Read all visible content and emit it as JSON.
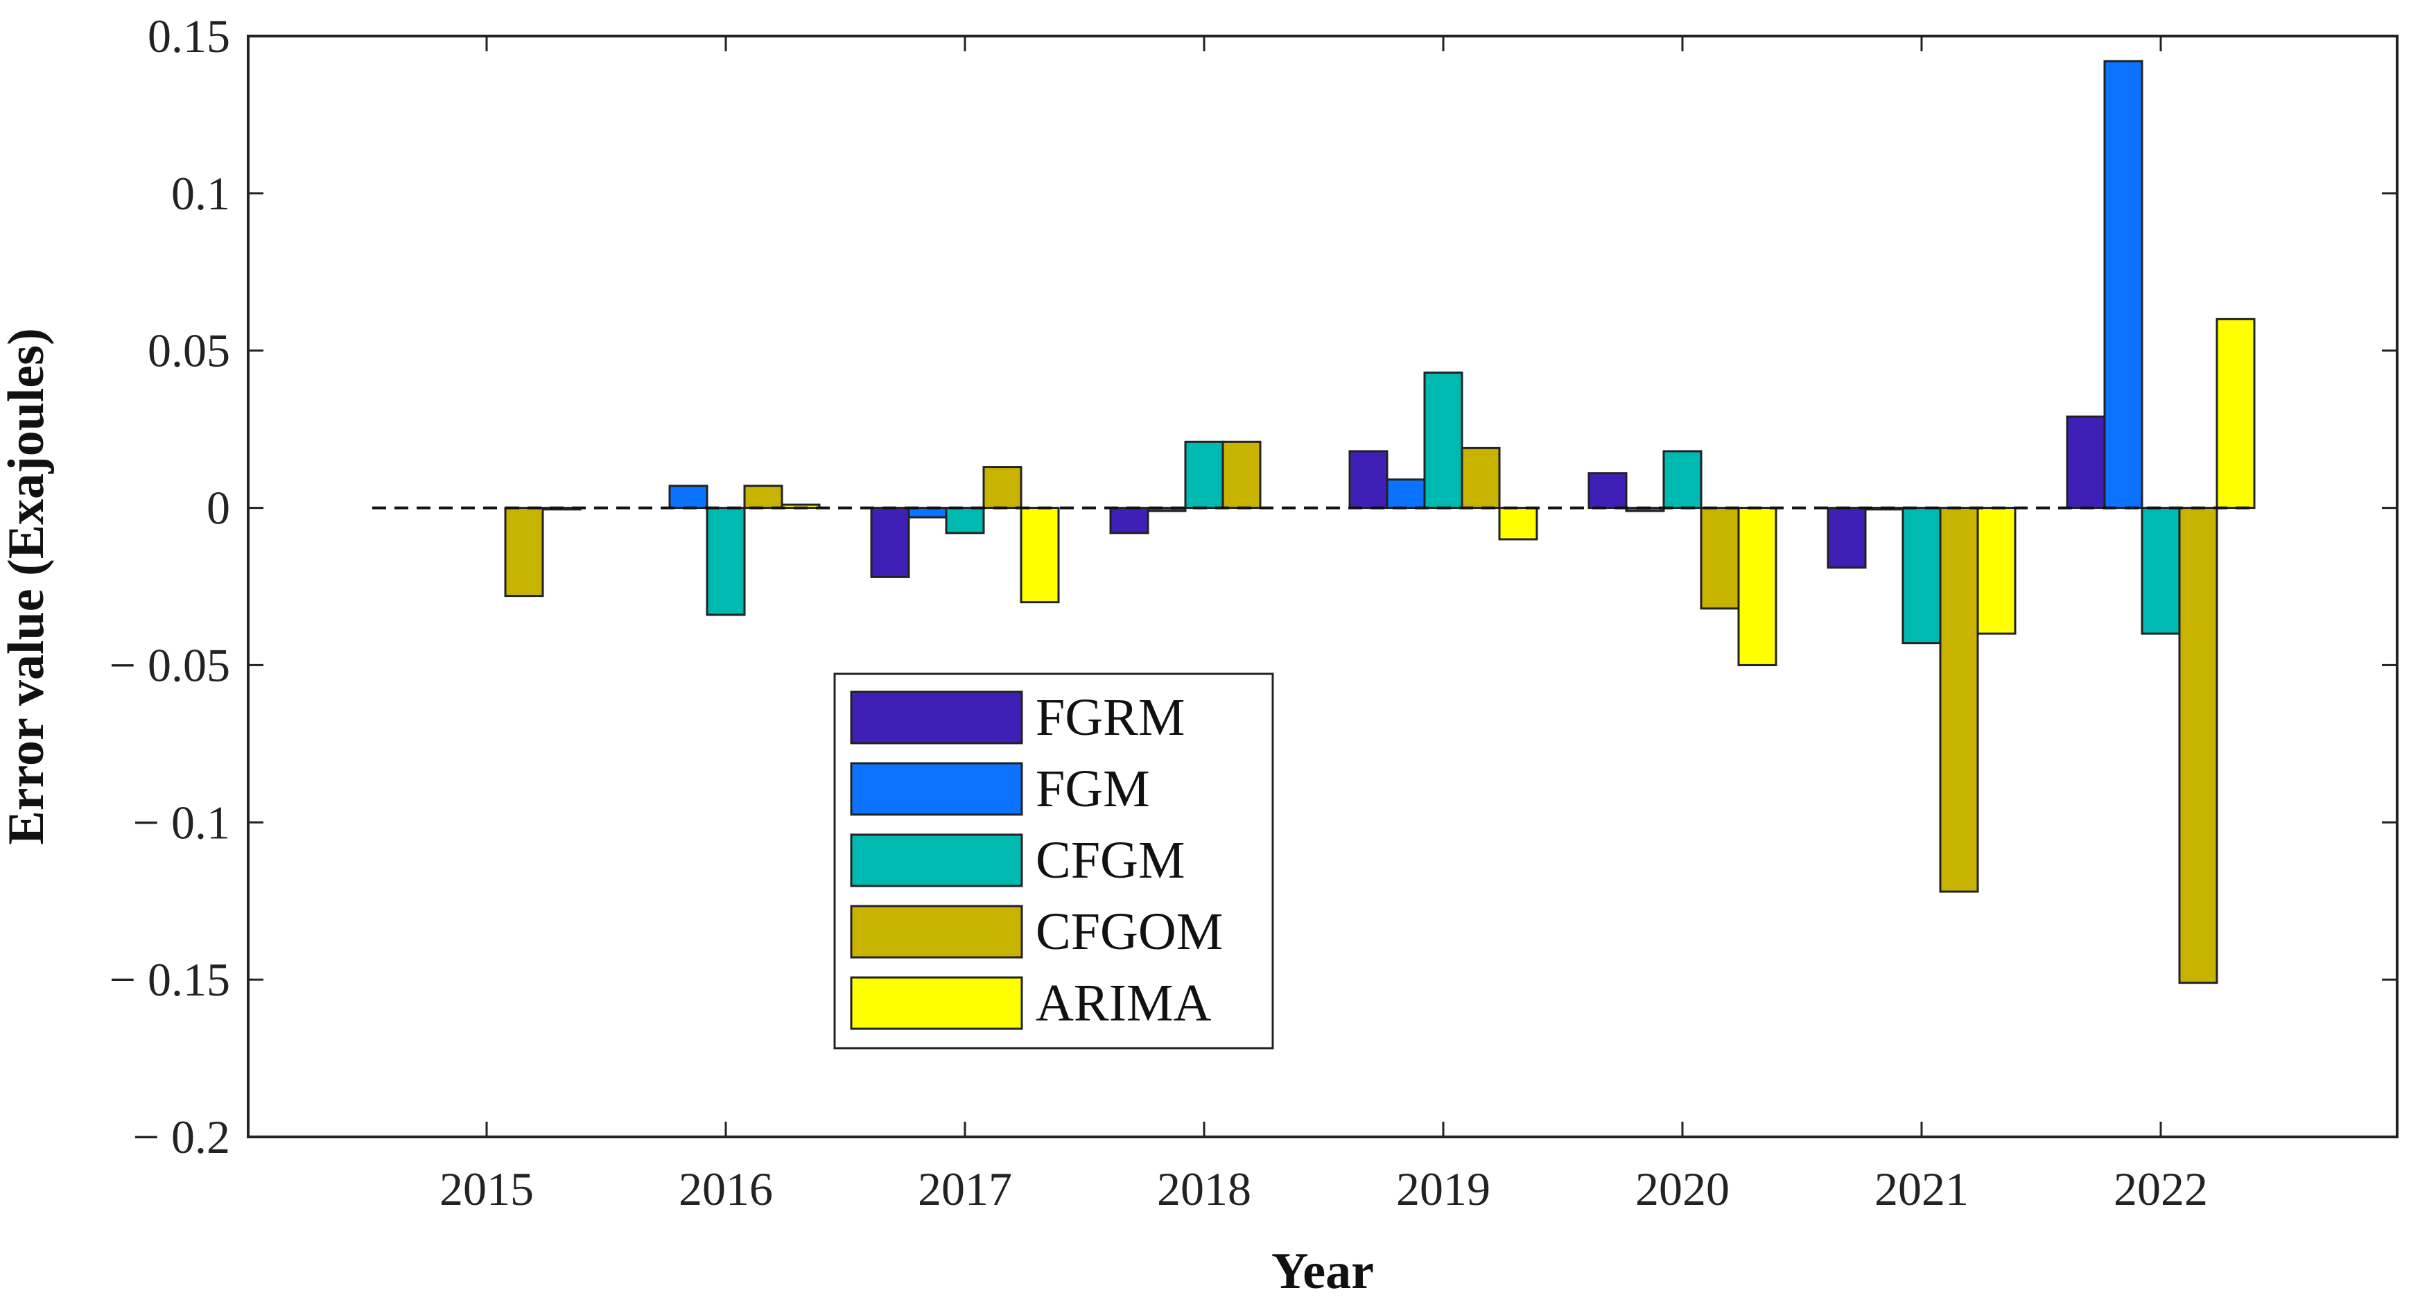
{
  "chart_data": {
    "type": "bar",
    "title": "",
    "xlabel": "Year",
    "ylabel": "Error value (Exajoules)",
    "categories": [
      "2015",
      "2016",
      "2017",
      "2018",
      "2019",
      "2020",
      "2021",
      "2022"
    ],
    "ylim": [
      -0.2,
      0.15
    ],
    "yticks": [
      0.15,
      0.1,
      0.05,
      0,
      -0.05,
      -0.1,
      -0.15,
      -0.2
    ],
    "ytick_labels": [
      "0.15",
      "0.1",
      "0.05",
      "0",
      "− 0.05",
      "− 0.1",
      "− 0.15",
      "− 0.2"
    ],
    "baseline_style": "dashed",
    "legend_position": "lower-left",
    "series": [
      {
        "name": "FGRM",
        "color": "#3f1fb5",
        "values": [
          0,
          0,
          -0.022,
          -0.008,
          0.018,
          0.011,
          -0.019,
          0.029
        ]
      },
      {
        "name": "FGM",
        "color": "#0b73ff",
        "values": [
          0,
          0.007,
          -0.003,
          -0.001,
          0.009,
          -0.001,
          -0.0005,
          0.142
        ]
      },
      {
        "name": "CFGM",
        "color": "#00b9b0",
        "values": [
          0,
          -0.034,
          -0.008,
          0.021,
          0.043,
          0.018,
          -0.043,
          -0.04
        ]
      },
      {
        "name": "CFGOM",
        "color": "#c8b400",
        "values": [
          -0.028,
          0.007,
          0.013,
          0.021,
          0.019,
          -0.032,
          -0.122,
          -0.151
        ]
      },
      {
        "name": "ARIMA",
        "color": "#ffff00",
        "values": [
          -0.0005,
          0.001,
          -0.03,
          0,
          -0.01,
          -0.05,
          -0.04,
          0.06
        ]
      }
    ]
  }
}
